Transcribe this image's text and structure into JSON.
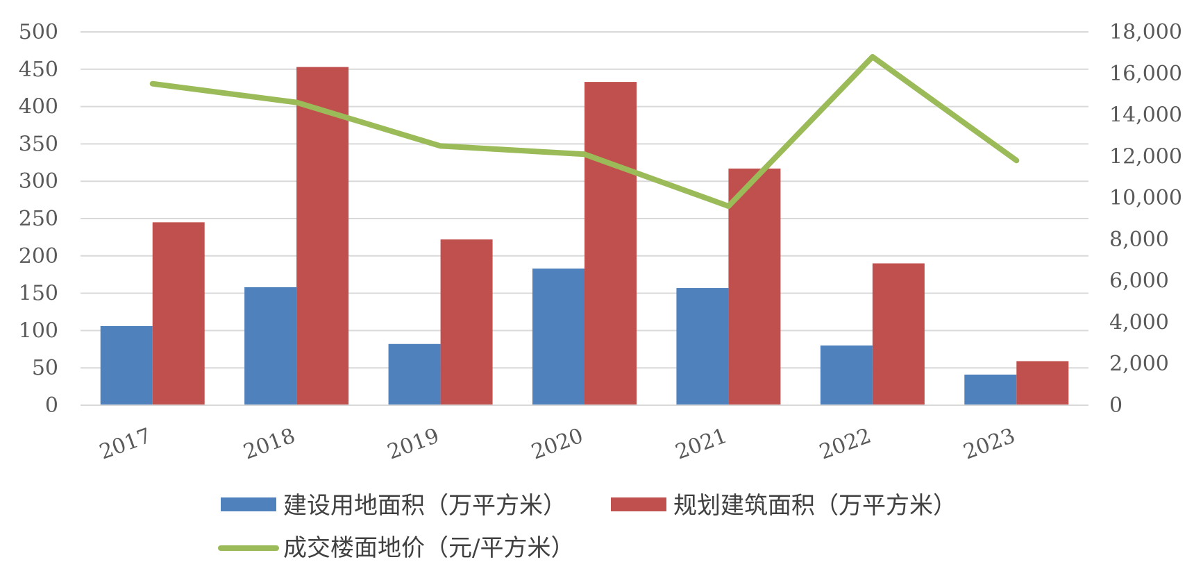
{
  "chart_data": {
    "type": "bar",
    "categories": [
      "2017",
      "2018",
      "2019",
      "2020",
      "2021",
      "2022",
      "2023"
    ],
    "series": [
      {
        "name": "建设用地面积（万平方米）",
        "type": "bar",
        "axis": "left",
        "color": "#4f81bd",
        "values": [
          106,
          158,
          82,
          183,
          157,
          80,
          41
        ]
      },
      {
        "name": "规划建筑面积（万平方米）",
        "type": "bar",
        "axis": "left",
        "color": "#c0504d",
        "values": [
          245,
          453,
          222,
          433,
          317,
          190,
          59
        ]
      },
      {
        "name": "成交楼面地价（元/平方米）",
        "type": "line",
        "axis": "right",
        "color": "#9bbb59",
        "values": [
          15500,
          14600,
          12500,
          12100,
          9600,
          16800,
          11800
        ]
      }
    ],
    "y_left": {
      "range": [
        0,
        500
      ],
      "ticks": [
        "0",
        "50",
        "100",
        "150",
        "200",
        "250",
        "300",
        "350",
        "400",
        "450",
        "500"
      ]
    },
    "y_right": {
      "range": [
        0,
        18000
      ],
      "ticks": [
        "0",
        "2,000",
        "4,000",
        "6,000",
        "8,000",
        "10,000",
        "12,000",
        "14,000",
        "16,000",
        "18,000"
      ]
    },
    "grid": true,
    "legend_position": "bottom"
  }
}
